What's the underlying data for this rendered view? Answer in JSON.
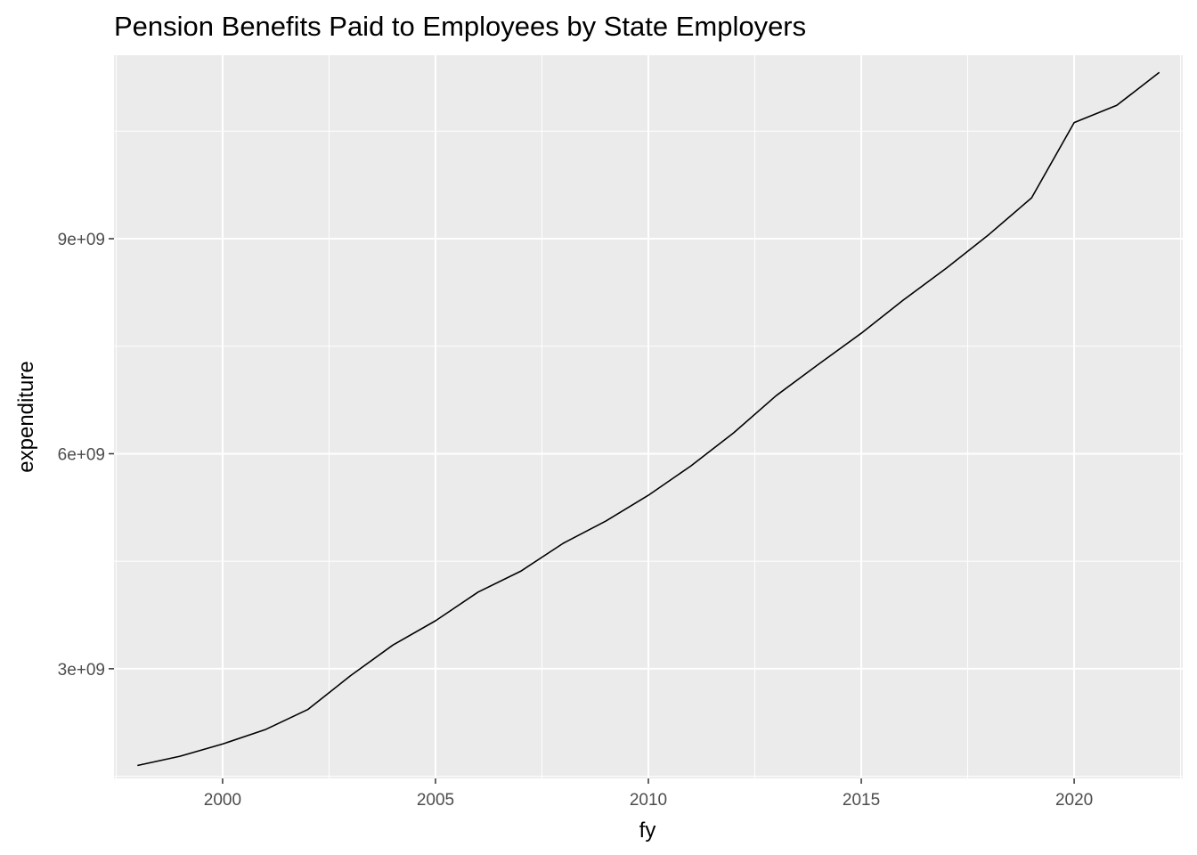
{
  "chart_data": {
    "type": "line",
    "title": "Pension Benefits Paid to Employees by State Employers",
    "xlabel": "fy",
    "ylabel": "expenditure",
    "x": [
      1998,
      1999,
      2000,
      2001,
      2002,
      2003,
      2004,
      2005,
      2006,
      2007,
      2008,
      2009,
      2010,
      2011,
      2012,
      2013,
      2014,
      2015,
      2016,
      2017,
      2018,
      2019,
      2020,
      2021,
      2022
    ],
    "series": [
      {
        "values": [
          1650000000,
          1780000000,
          1950000000,
          2150000000,
          2430000000,
          2900000000,
          3330000000,
          3670000000,
          4070000000,
          4360000000,
          4750000000,
          5060000000,
          5420000000,
          5830000000,
          6290000000,
          6810000000,
          7250000000,
          7680000000,
          8150000000,
          8590000000,
          9060000000,
          9570000000,
          10620000000,
          10860000000,
          11320000000
        ]
      }
    ],
    "xlim": [
      1997.45,
      2022.55
    ],
    "ylim": [
      1470000000,
      11560000000
    ],
    "x_ticks": [
      2000,
      2005,
      2010,
      2015,
      2020
    ],
    "x_tick_labels": [
      "2000",
      "2005",
      "2010",
      "2015",
      "2020"
    ],
    "y_ticks": [
      3000000000,
      6000000000,
      9000000000
    ],
    "y_tick_labels": [
      "3e+09",
      "6e+09",
      "9e+09"
    ],
    "grid": true,
    "line_color": "#000000",
    "panel_background": "#ebebeb",
    "grid_color": "#ffffff"
  }
}
